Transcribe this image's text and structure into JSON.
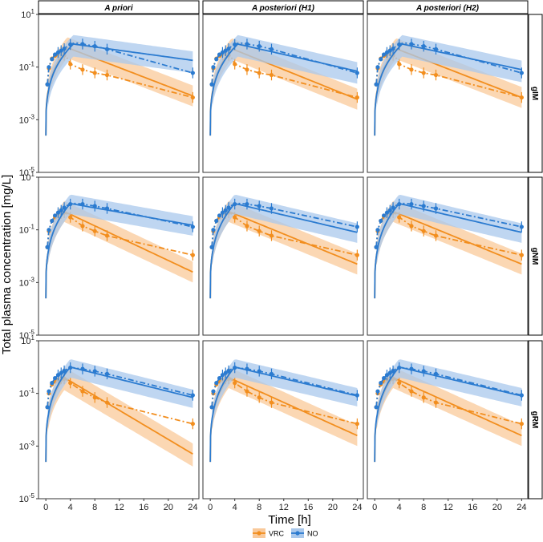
{
  "figure": {
    "xlabel": "Time [h]",
    "ylabel": "Total plasma concentration [mg/L]",
    "col_titles": [
      "A priori",
      "A posteriori (H1)",
      "A posteriori (H2)"
    ],
    "row_titles": [
      "gIM",
      "gNM",
      "gRM"
    ],
    "legend": [
      {
        "label": "VRC",
        "color": "#F28E1E"
      },
      {
        "label": "NO",
        "color": "#2B7BD0"
      }
    ]
  },
  "chart_data": {
    "type": "line",
    "grid": false,
    "y_scale": "log10",
    "xlim": [
      -1.2,
      25
    ],
    "ylim": [
      1e-05,
      10
    ],
    "x_ticks": [
      0,
      4,
      8,
      12,
      16,
      20,
      24
    ],
    "y_ticks": [
      {
        "value": 10,
        "base": "10",
        "exp": "1"
      },
      {
        "value": 0.1,
        "base": "10",
        "exp": "-1"
      },
      {
        "value": 0.001,
        "base": "10",
        "exp": "-3"
      },
      {
        "value": 1e-05,
        "base": "10",
        "exp": "-5"
      }
    ],
    "series_styles": {
      "VRC": {
        "color": "#F28E1E",
        "band": "#F9C99A"
      },
      "NO": {
        "color": "#2B7BD0",
        "band": "#A9C8EC"
      }
    },
    "panels": [
      {
        "row": "gIM",
        "col": "A priori",
        "series": [
          {
            "name": "VRC",
            "model": {
              "peak": 0.55,
              "tmax": 3.5,
              "end": 0.008,
              "band_low": 2.5,
              "band_high": 2.5
            },
            "observed": {
              "x": [
                0.25,
                0.5,
                0.75,
                1,
                1.5,
                2,
                2.5,
                3,
                3.5,
                4,
                6,
                8,
                10,
                24
              ],
              "y": [
                0.022,
                0.09,
                0.16,
                0.21,
                0.27,
                0.3,
                0.32,
                0.28,
                0.22,
                0.13,
                0.08,
                0.06,
                0.05,
                0.007
              ]
            }
          },
          {
            "name": "NO",
            "model": {
              "peak": 0.75,
              "tmax": 4.5,
              "end": 0.18,
              "band_low": 3,
              "band_high": 2.2
            },
            "observed": {
              "x": [
                0.25,
                0.5,
                1,
                1.5,
                2,
                2.5,
                3,
                3.5,
                4,
                4.5,
                5,
                6,
                8,
                10,
                24
              ],
              "y": [
                0.022,
                0.1,
                0.2,
                0.3,
                0.36,
                0.42,
                0.5,
                0.62,
                0.72,
                0.8,
                0.82,
                0.75,
                0.62,
                0.48,
                0.06
              ]
            }
          }
        ]
      },
      {
        "row": "gIM",
        "col": "A posteriori (H1)",
        "series": [
          {
            "name": "VRC",
            "model": {
              "peak": 0.5,
              "tmax": 3.5,
              "end": 0.006,
              "band_low": 2.5,
              "band_high": 2.5
            },
            "observed": {
              "x": [
                0.25,
                0.5,
                0.75,
                1,
                1.5,
                2,
                2.5,
                3,
                3.5,
                4,
                6,
                8,
                10,
                24
              ],
              "y": [
                0.022,
                0.09,
                0.16,
                0.21,
                0.27,
                0.3,
                0.32,
                0.28,
                0.22,
                0.13,
                0.08,
                0.06,
                0.05,
                0.007
              ]
            }
          },
          {
            "name": "NO",
            "model": {
              "peak": 0.75,
              "tmax": 4.5,
              "end": 0.07,
              "band_low": 3,
              "band_high": 2.2
            },
            "observed": {
              "x": [
                0.25,
                0.5,
                1,
                1.5,
                2,
                2.5,
                3,
                3.5,
                4,
                4.5,
                5,
                6,
                8,
                10,
                24
              ],
              "y": [
                0.022,
                0.1,
                0.2,
                0.3,
                0.36,
                0.42,
                0.5,
                0.62,
                0.72,
                0.8,
                0.82,
                0.75,
                0.62,
                0.48,
                0.06
              ]
            }
          }
        ]
      },
      {
        "row": "gIM",
        "col": "A posteriori (H2)",
        "series": [
          {
            "name": "VRC",
            "model": {
              "peak": 0.5,
              "tmax": 3.5,
              "end": 0.007,
              "band_low": 2.5,
              "band_high": 2.5
            },
            "observed": {
              "x": [
                0.25,
                0.5,
                0.75,
                1,
                1.5,
                2,
                2.5,
                3,
                3.5,
                4,
                6,
                8,
                10,
                24
              ],
              "y": [
                0.022,
                0.09,
                0.16,
                0.21,
                0.27,
                0.3,
                0.32,
                0.28,
                0.22,
                0.13,
                0.08,
                0.06,
                0.05,
                0.007
              ]
            }
          },
          {
            "name": "NO",
            "model": {
              "peak": 0.75,
              "tmax": 4.5,
              "end": 0.08,
              "band_low": 3,
              "band_high": 2.2
            },
            "observed": {
              "x": [
                0.25,
                0.5,
                1,
                1.5,
                2,
                2.5,
                3,
                3.5,
                4,
                4.5,
                5,
                6,
                8,
                10,
                24
              ],
              "y": [
                0.022,
                0.1,
                0.2,
                0.3,
                0.36,
                0.42,
                0.5,
                0.62,
                0.72,
                0.8,
                0.82,
                0.75,
                0.62,
                0.48,
                0.06
              ]
            }
          }
        ]
      },
      {
        "row": "gNM",
        "col": "A priori",
        "series": [
          {
            "name": "VRC",
            "model": {
              "peak": 0.5,
              "tmax": 3.0,
              "end": 0.0025,
              "band_low": 2.5,
              "band_high": 2.5
            },
            "observed": {
              "x": [
                0.25,
                0.5,
                0.75,
                1,
                1.5,
                2,
                2.5,
                3,
                3.5,
                4,
                6,
                8,
                10,
                24
              ],
              "y": [
                0.022,
                0.09,
                0.15,
                0.22,
                0.3,
                0.37,
                0.42,
                0.45,
                0.4,
                0.3,
                0.14,
                0.09,
                0.06,
                0.011
              ]
            }
          },
          {
            "name": "NO",
            "model": {
              "peak": 1.0,
              "tmax": 4.0,
              "end": 0.15,
              "band_low": 2.5,
              "band_high": 2.2
            },
            "observed": {
              "x": [
                0.25,
                0.5,
                1,
                1.5,
                2,
                2.5,
                3,
                3.5,
                4,
                4.5,
                5,
                6,
                8,
                10,
                24
              ],
              "y": [
                0.022,
                0.1,
                0.22,
                0.35,
                0.45,
                0.55,
                0.7,
                0.85,
                0.95,
                1.0,
                1.0,
                0.95,
                0.8,
                0.65,
                0.13
              ]
            }
          }
        ]
      },
      {
        "row": "gNM",
        "col": "A posteriori (H1)",
        "series": [
          {
            "name": "VRC",
            "model": {
              "peak": 0.5,
              "tmax": 3.0,
              "end": 0.005,
              "band_low": 2.5,
              "band_high": 2.5
            },
            "observed": {
              "x": [
                0.25,
                0.5,
                0.75,
                1,
                1.5,
                2,
                2.5,
                3,
                3.5,
                4,
                6,
                8,
                10,
                24
              ],
              "y": [
                0.022,
                0.09,
                0.15,
                0.22,
                0.3,
                0.37,
                0.42,
                0.45,
                0.4,
                0.3,
                0.14,
                0.09,
                0.06,
                0.011
              ]
            }
          },
          {
            "name": "NO",
            "model": {
              "peak": 1.0,
              "tmax": 4.0,
              "end": 0.08,
              "band_low": 2.5,
              "band_high": 2.2
            },
            "observed": {
              "x": [
                0.25,
                0.5,
                1,
                1.5,
                2,
                2.5,
                3,
                3.5,
                4,
                4.5,
                5,
                6,
                8,
                10,
                24
              ],
              "y": [
                0.022,
                0.1,
                0.22,
                0.35,
                0.45,
                0.55,
                0.7,
                0.85,
                0.95,
                1.0,
                1.0,
                0.95,
                0.8,
                0.65,
                0.13
              ]
            }
          }
        ]
      },
      {
        "row": "gNM",
        "col": "A posteriori (H2)",
        "series": [
          {
            "name": "VRC",
            "model": {
              "peak": 0.5,
              "tmax": 3.0,
              "end": 0.005,
              "band_low": 2.5,
              "band_high": 2.5
            },
            "observed": {
              "x": [
                0.25,
                0.5,
                0.75,
                1,
                1.5,
                2,
                2.5,
                3,
                3.5,
                4,
                6,
                8,
                10,
                24
              ],
              "y": [
                0.022,
                0.09,
                0.15,
                0.22,
                0.3,
                0.37,
                0.42,
                0.45,
                0.4,
                0.3,
                0.14,
                0.09,
                0.06,
                0.011
              ]
            }
          },
          {
            "name": "NO",
            "model": {
              "peak": 1.0,
              "tmax": 4.0,
              "end": 0.08,
              "band_low": 2.5,
              "band_high": 2.2
            },
            "observed": {
              "x": [
                0.25,
                0.5,
                1,
                1.5,
                2,
                2.5,
                3,
                3.5,
                4,
                4.5,
                5,
                6,
                8,
                10,
                24
              ],
              "y": [
                0.022,
                0.1,
                0.22,
                0.35,
                0.45,
                0.55,
                0.7,
                0.85,
                0.95,
                1.0,
                1.0,
                0.95,
                0.8,
                0.65,
                0.13
              ]
            }
          }
        ]
      },
      {
        "row": "gRM",
        "col": "A priori",
        "series": [
          {
            "name": "VRC",
            "model": {
              "peak": 0.4,
              "tmax": 3.0,
              "end": 0.0005,
              "band_low": 3,
              "band_high": 2.5
            },
            "observed": {
              "x": [
                0.25,
                0.5,
                0.75,
                1,
                1.5,
                2,
                2.5,
                3,
                3.5,
                4,
                6,
                8,
                10,
                24
              ],
              "y": [
                0.03,
                0.1,
                0.16,
                0.22,
                0.28,
                0.33,
                0.36,
                0.36,
                0.32,
                0.25,
                0.12,
                0.07,
                0.045,
                0.007
              ]
            }
          },
          {
            "name": "NO",
            "model": {
              "peak": 1.0,
              "tmax": 4.0,
              "end": 0.07,
              "band_low": 2.5,
              "band_high": 2.0
            },
            "observed": {
              "x": [
                0.25,
                0.5,
                1,
                1.5,
                2,
                2.5,
                3,
                3.5,
                4,
                4.5,
                5,
                6,
                8,
                10,
                24
              ],
              "y": [
                0.03,
                0.12,
                0.25,
                0.38,
                0.5,
                0.6,
                0.72,
                0.85,
                0.95,
                0.95,
                0.9,
                0.85,
                0.7,
                0.55,
                0.085
              ]
            }
          }
        ]
      },
      {
        "row": "gRM",
        "col": "A posteriori (H1)",
        "series": [
          {
            "name": "VRC",
            "model": {
              "peak": 0.4,
              "tmax": 3.0,
              "end": 0.0025,
              "band_low": 2.5,
              "band_high": 2.5
            },
            "observed": {
              "x": [
                0.25,
                0.5,
                0.75,
                1,
                1.5,
                2,
                2.5,
                3,
                3.5,
                4,
                6,
                8,
                10,
                24
              ],
              "y": [
                0.03,
                0.1,
                0.16,
                0.22,
                0.28,
                0.33,
                0.36,
                0.36,
                0.32,
                0.25,
                0.12,
                0.07,
                0.045,
                0.007
              ]
            }
          },
          {
            "name": "NO",
            "model": {
              "peak": 1.0,
              "tmax": 4.0,
              "end": 0.08,
              "band_low": 2.5,
              "band_high": 2.0
            },
            "observed": {
              "x": [
                0.25,
                0.5,
                1,
                1.5,
                2,
                2.5,
                3,
                3.5,
                4,
                4.5,
                5,
                6,
                8,
                10,
                24
              ],
              "y": [
                0.03,
                0.12,
                0.25,
                0.38,
                0.5,
                0.6,
                0.72,
                0.85,
                0.95,
                0.95,
                0.9,
                0.85,
                0.7,
                0.55,
                0.085
              ]
            }
          }
        ]
      },
      {
        "row": "gRM",
        "col": "A posteriori (H2)",
        "series": [
          {
            "name": "VRC",
            "model": {
              "peak": 0.4,
              "tmax": 3.0,
              "end": 0.0025,
              "band_low": 2.5,
              "band_high": 2.5
            },
            "observed": {
              "x": [
                0.25,
                0.5,
                0.75,
                1,
                1.5,
                2,
                2.5,
                3,
                3.5,
                4,
                6,
                8,
                10,
                24
              ],
              "y": [
                0.03,
                0.1,
                0.16,
                0.22,
                0.28,
                0.33,
                0.36,
                0.36,
                0.32,
                0.25,
                0.12,
                0.07,
                0.045,
                0.007
              ]
            }
          },
          {
            "name": "NO",
            "model": {
              "peak": 1.0,
              "tmax": 4.0,
              "end": 0.08,
              "band_low": 2.5,
              "band_high": 2.0
            },
            "observed": {
              "x": [
                0.25,
                0.5,
                1,
                1.5,
                2,
                2.5,
                3,
                3.5,
                4,
                4.5,
                5,
                6,
                8,
                10,
                24
              ],
              "y": [
                0.03,
                0.12,
                0.25,
                0.38,
                0.5,
                0.6,
                0.72,
                0.85,
                0.95,
                0.95,
                0.9,
                0.85,
                0.7,
                0.55,
                0.085
              ]
            }
          }
        ]
      }
    ]
  }
}
